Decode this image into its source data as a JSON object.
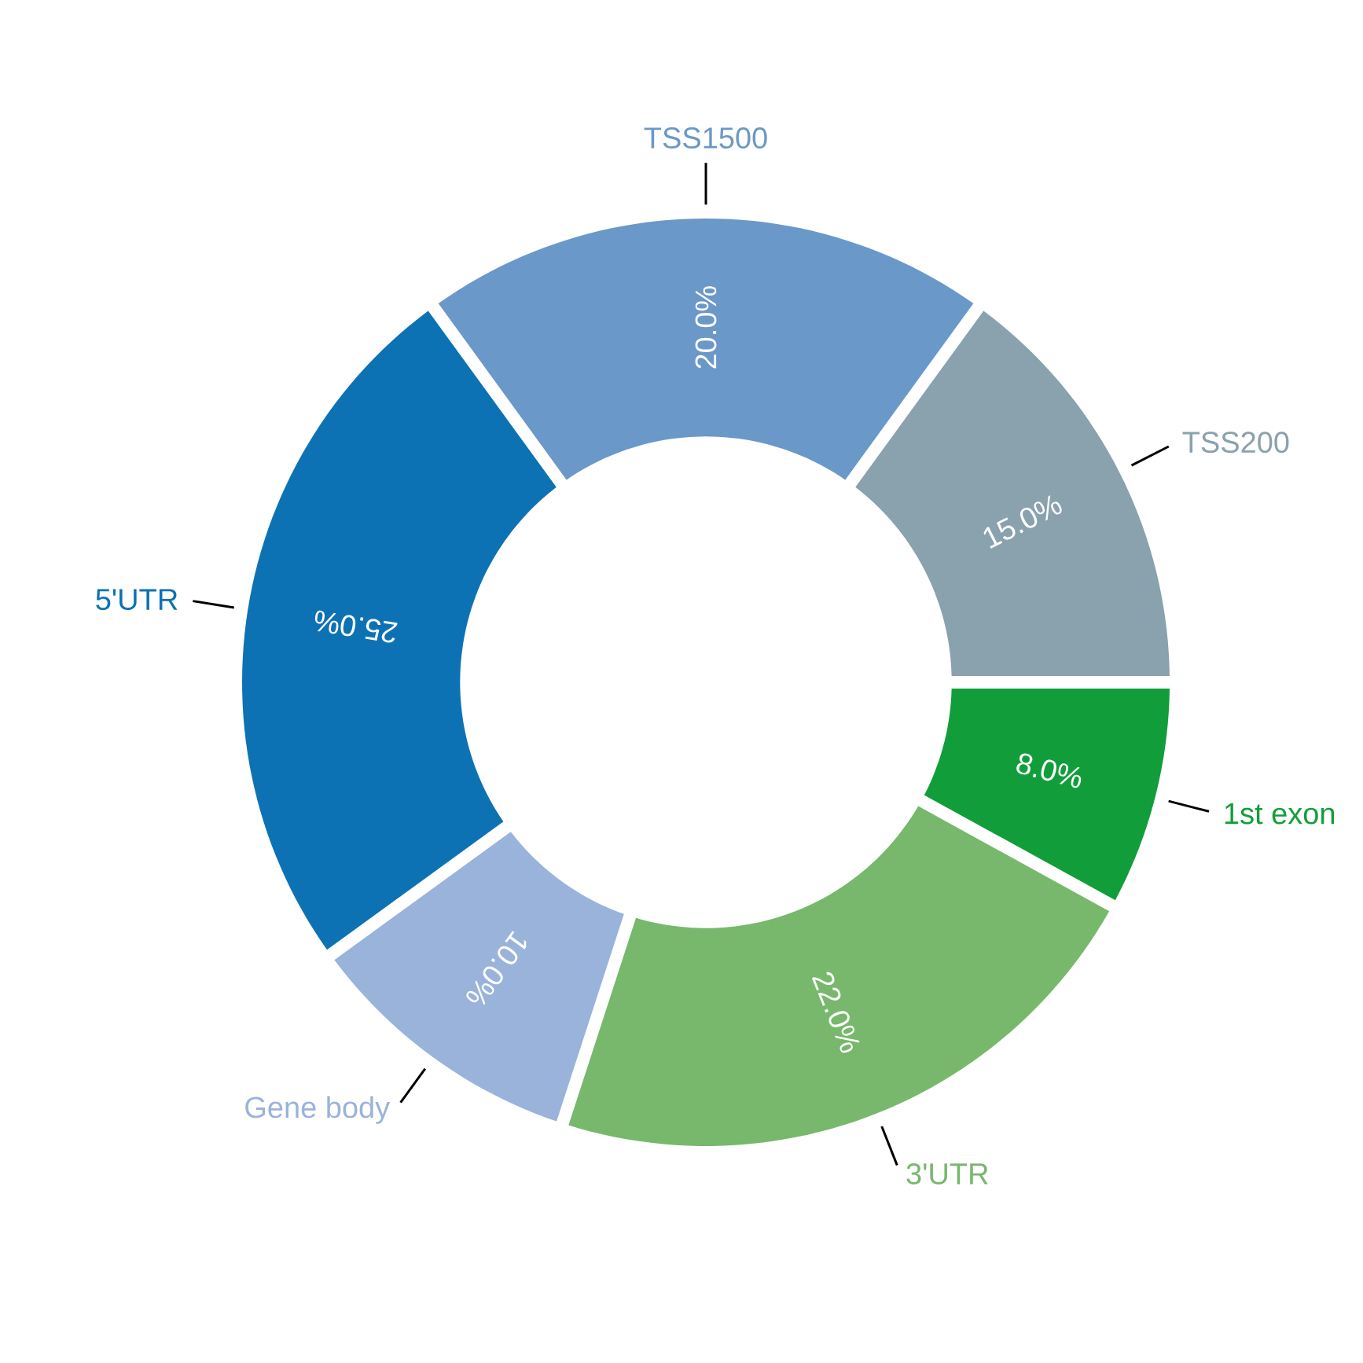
{
  "chart_data": {
    "type": "donut",
    "categories": [
      "1st exon",
      "3'UTR",
      "Gene body",
      "5'UTR",
      "TSS1500",
      "TSS200"
    ],
    "values": [
      8,
      22,
      10,
      25,
      20,
      15
    ],
    "colors": [
      "#119e3a",
      "#77b86c",
      "#9ab3da",
      "#0d72b4",
      "#6a98c8",
      "#8aa1ae"
    ],
    "value_labels": [
      "8.0%",
      "22.0%",
      "10.0%",
      "25.0%",
      "20.0%",
      "15.0%"
    ]
  }
}
